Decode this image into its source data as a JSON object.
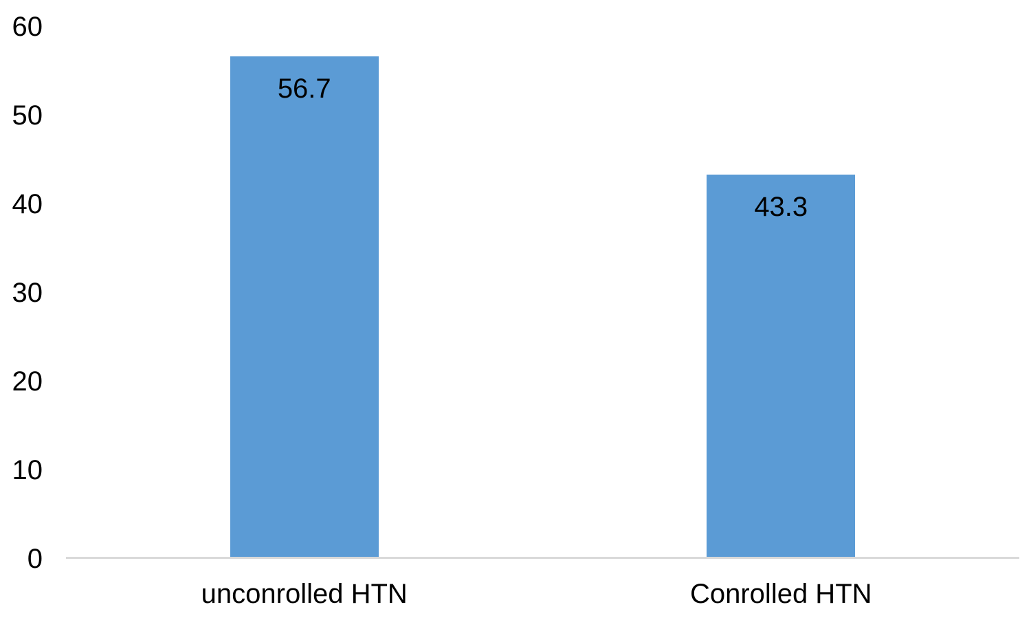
{
  "chart_data": {
    "type": "bar",
    "title": "",
    "xlabel": "",
    "ylabel": "",
    "categories": [
      "unconrolled HTN",
      "Conrolled HTN"
    ],
    "values": [
      56.7,
      43.3
    ],
    "data_labels": [
      "56.7",
      "43.3"
    ],
    "yticks": [
      "0",
      "10",
      "20",
      "30",
      "40",
      "50",
      "60"
    ],
    "ytick_values": [
      0,
      10,
      20,
      30,
      40,
      50,
      60
    ],
    "ylim": [
      0,
      60
    ],
    "grid": false,
    "legend": false,
    "data_label_position": "inside-end",
    "colors": {
      "bar": "#5b9bd5",
      "axis_line": "#d9d9d9",
      "text": "#000000",
      "background": "#ffffff"
    }
  }
}
